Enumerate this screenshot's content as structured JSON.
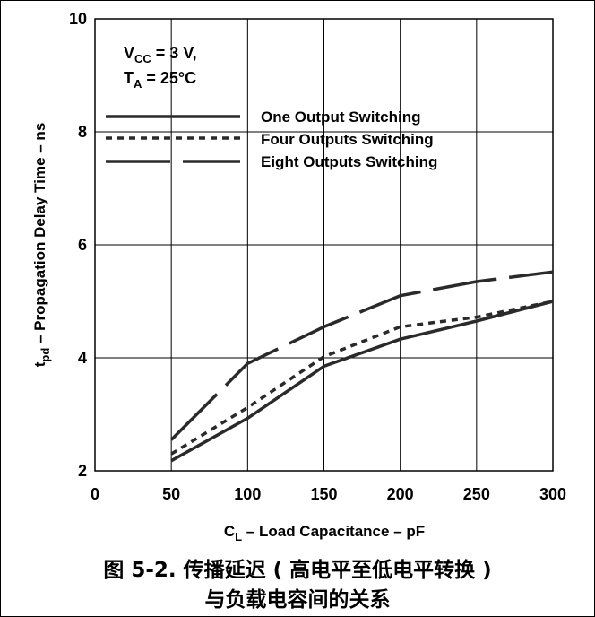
{
  "chart_data": {
    "type": "line",
    "xlabel": {
      "main": "C",
      "sub": "L",
      "rest": " – Load Capacitance – pF"
    },
    "ylabel": {
      "main": "t",
      "sub": "pd",
      "rest": " – Propagation Delay Time – ns"
    },
    "xlim": [
      0,
      300
    ],
    "ylim": [
      2,
      10
    ],
    "xticks": [
      0,
      50,
      100,
      150,
      200,
      250,
      300
    ],
    "yticks": [
      2,
      4,
      6,
      8,
      10
    ],
    "grid": true,
    "conditions": [
      {
        "main": "V",
        "sub": "CC",
        "rest": " = 3 V,"
      },
      {
        "main": "T",
        "sub": "A",
        "rest": " = 25°C"
      }
    ],
    "legend_position": "top-right",
    "series": [
      {
        "name": "One Output Switching",
        "style": "solid",
        "x": [
          50,
          100,
          150,
          200,
          250,
          300
        ],
        "y": [
          2.18,
          2.93,
          3.85,
          4.33,
          4.65,
          5.0
        ]
      },
      {
        "name": "Four Outputs Switching",
        "style": "dotted",
        "x": [
          50,
          100,
          150,
          200,
          250,
          300
        ],
        "y": [
          2.3,
          3.12,
          4.02,
          4.55,
          4.72,
          5.0
        ]
      },
      {
        "name": "Eight Outputs Switching",
        "style": "dashed",
        "x": [
          50,
          100,
          150,
          200,
          250,
          300
        ],
        "y": [
          2.55,
          3.9,
          4.55,
          5.1,
          5.35,
          5.52
        ]
      }
    ]
  },
  "caption": {
    "line1": "图 5-2. 传播延迟 ( 高电平至低电平转换 )",
    "line2": "与负载电容间的关系"
  }
}
